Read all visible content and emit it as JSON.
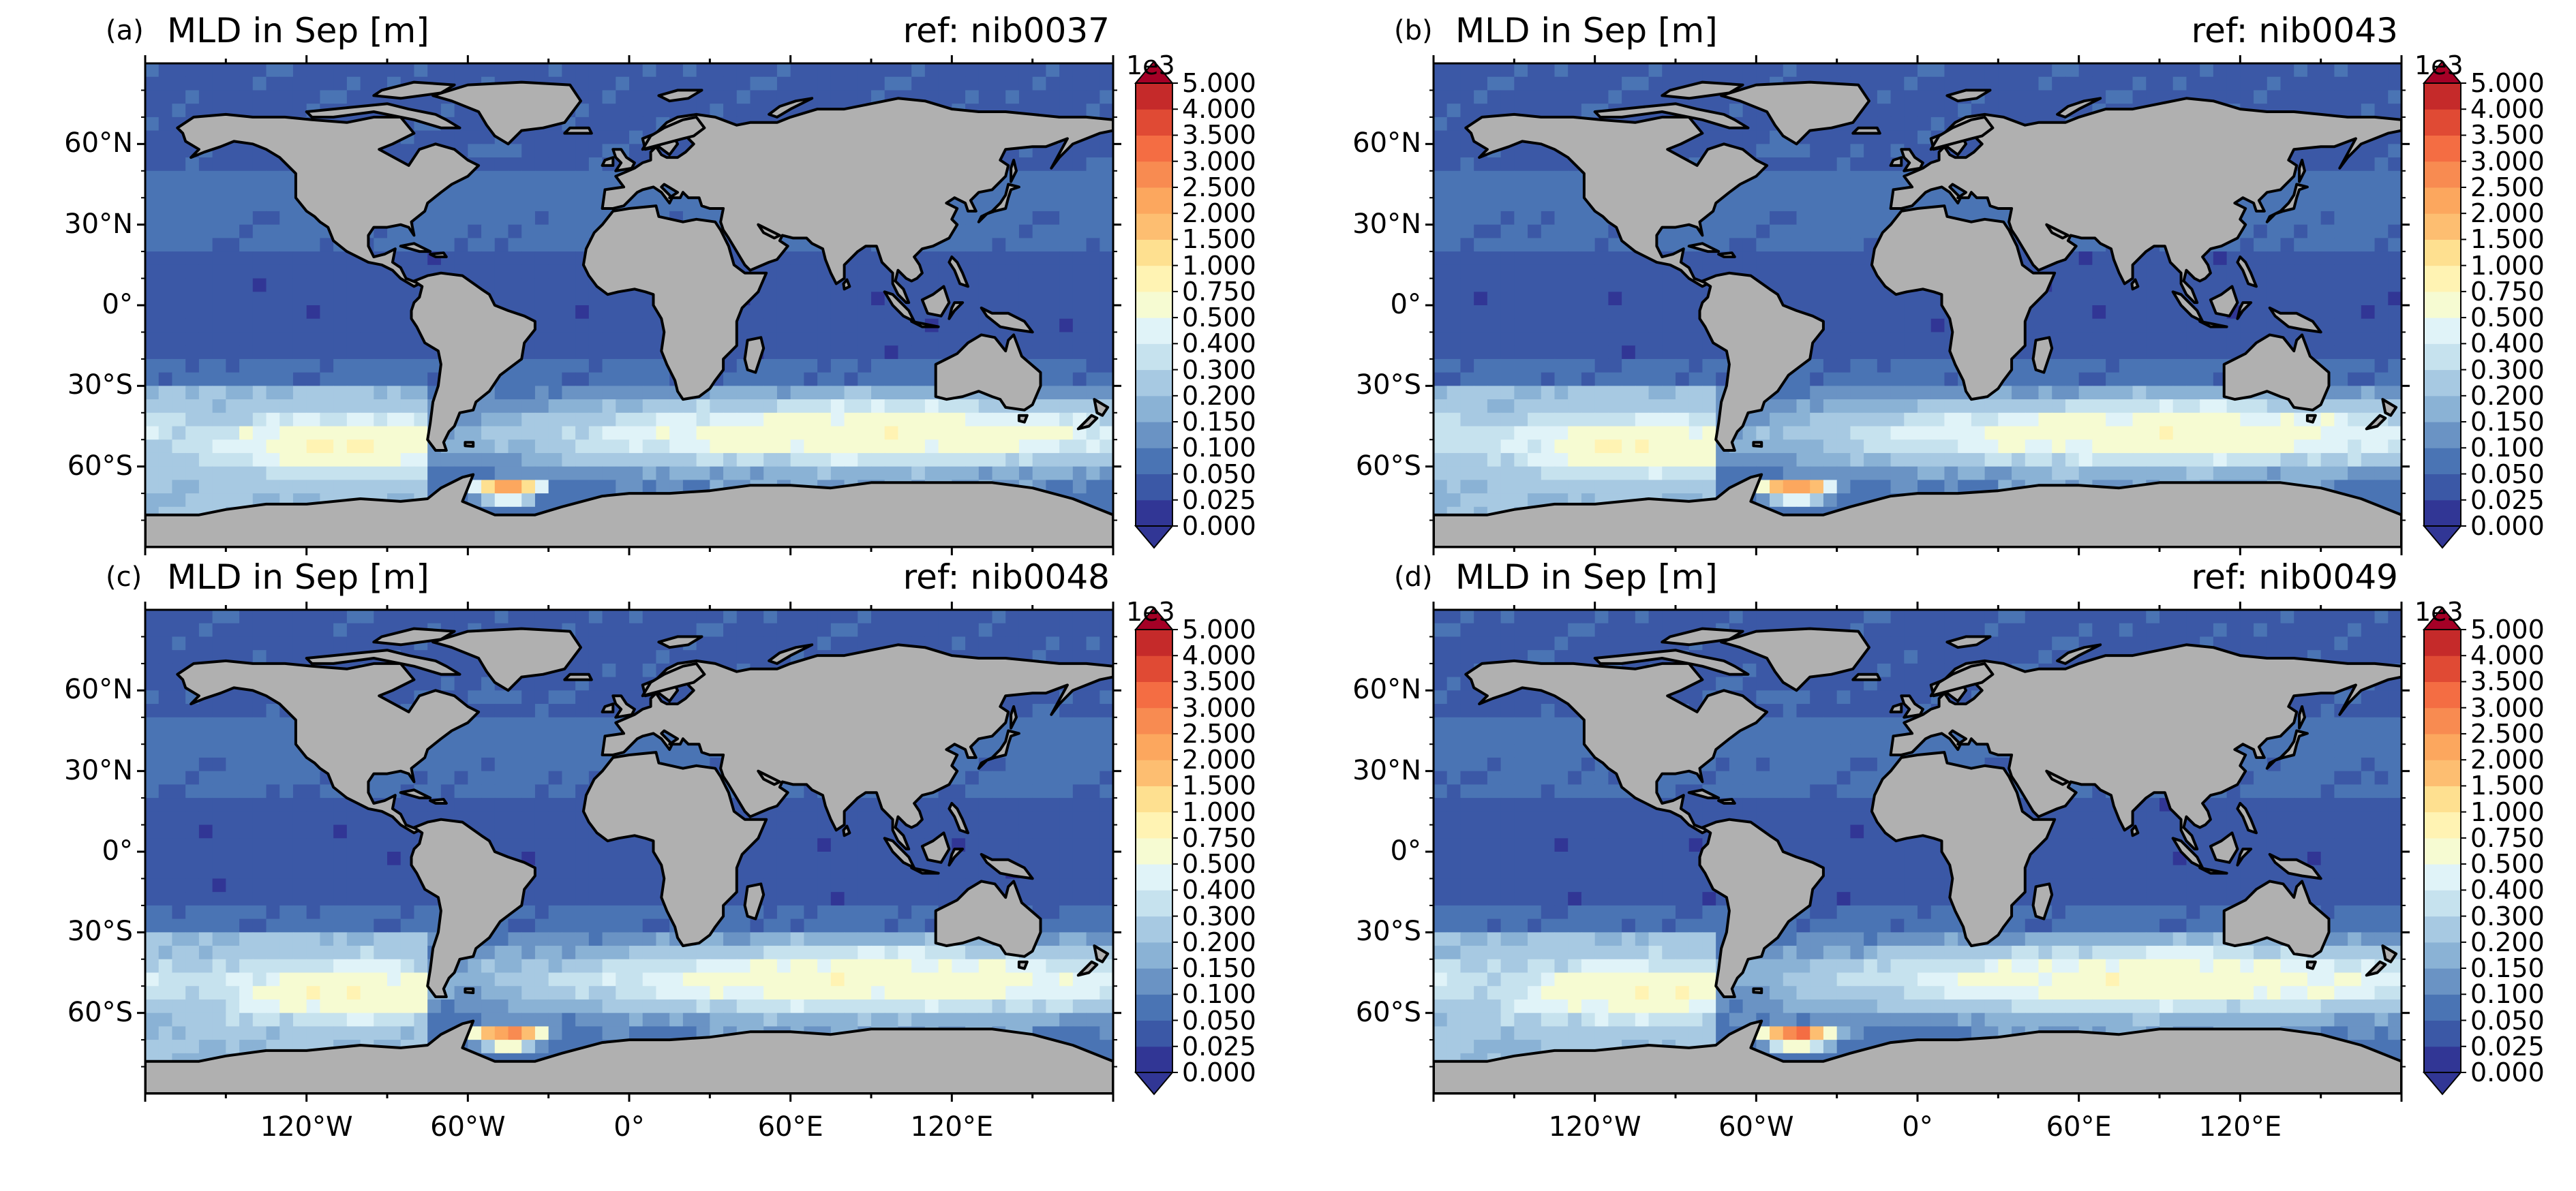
{
  "panels": [
    {
      "id": "a",
      "label": "(a)",
      "title": "MLD in Sep [m]",
      "ref": "ref: nib0037"
    },
    {
      "id": "b",
      "label": "(b)",
      "title": "MLD in Sep [m]",
      "ref": "ref: nib0043"
    },
    {
      "id": "c",
      "label": "(c)",
      "title": "MLD in Sep [m]",
      "ref": "ref: nib0048"
    },
    {
      "id": "d",
      "label": "(d)",
      "title": "MLD in Sep [m]",
      "ref": "ref: nib0049"
    }
  ],
  "axes": {
    "lat_ticks": [
      "60°N",
      "30°N",
      "0°",
      "30°S",
      "60°S"
    ],
    "lon_ticks": [
      "120°W",
      "60°W",
      "0°",
      "60°E",
      "120°E"
    ]
  },
  "colorbar": {
    "exponent": "1e3",
    "levels": [
      "0.000",
      "0.025",
      "0.050",
      "0.100",
      "0.150",
      "0.200",
      "0.300",
      "0.400",
      "0.500",
      "0.750",
      "1.000",
      "1.500",
      "2.000",
      "2.500",
      "3.000",
      "3.500",
      "4.000",
      "5.000"
    ],
    "colors": [
      "#313695",
      "#3b58a6",
      "#4a74b4",
      "#6a93c4",
      "#8ab2d5",
      "#a7c9e2",
      "#c6e2ee",
      "#e0f3f8",
      "#f6fbd2",
      "#fff3b3",
      "#fee090",
      "#fdbe71",
      "#fca75e",
      "#f88b51",
      "#f46d43",
      "#e04a34",
      "#c52a2a",
      "#a50026"
    ],
    "over_color": "#a50026",
    "under_color": "#313695"
  },
  "colors": {
    "land": "#b0b0b0",
    "ocean_deep": "#3b58a6",
    "ocean_mid": "#4a74b4"
  }
}
